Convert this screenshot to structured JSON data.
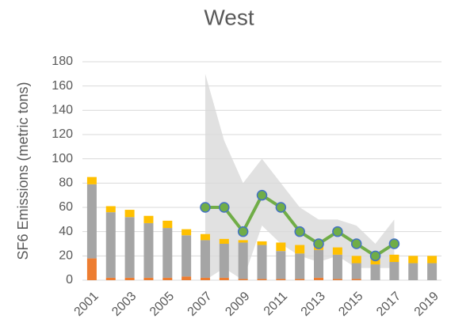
{
  "chart_data": {
    "type": "stacked_bar",
    "title": "West",
    "y_label": "SF6 Emissions (metric tons)",
    "categories": [
      "2001",
      null,
      "2003",
      null,
      "2005",
      null,
      "2007",
      null,
      "2009",
      null,
      "2011",
      null,
      "2013",
      null,
      "2015",
      null,
      "2017",
      null,
      "2019"
    ],
    "series": [
      {
        "color": "#ed7d31",
        "values": [
          18,
          2,
          2,
          2,
          2,
          3,
          2,
          2,
          1,
          1,
          1,
          1,
          2,
          1,
          1,
          0,
          0,
          0,
          0
        ]
      },
      {
        "color": "#a5a5a5",
        "values": [
          61,
          54,
          50,
          45,
          41,
          34,
          31,
          28,
          30,
          28,
          23,
          21,
          23,
          20,
          13,
          13,
          15,
          14,
          14
        ]
      },
      {
        "color": "#ffc000",
        "values": [
          6,
          5,
          6,
          6,
          6,
          5,
          5,
          4,
          2,
          3,
          7,
          7,
          4,
          6,
          6,
          6,
          6,
          6,
          6
        ]
      }
    ],
    "line": {
      "color": "#70ad47",
      "marker_color": "#4472c4",
      "values": [
        null,
        null,
        null,
        null,
        null,
        null,
        60,
        60,
        40,
        70,
        60,
        40,
        30,
        40,
        30,
        20,
        30,
        null,
        null
      ]
    },
    "band": {
      "color": "#d9d9d9",
      "upper": [
        null,
        null,
        null,
        null,
        null,
        null,
        170,
        115,
        80,
        100,
        80,
        60,
        50,
        50,
        45,
        30,
        50,
        null,
        null
      ],
      "lower": [
        null,
        null,
        null,
        null,
        null,
        null,
        0,
        10,
        0,
        45,
        30,
        20,
        15,
        20,
        10,
        10,
        10,
        null,
        null
      ]
    },
    "ylim": [
      0,
      180
    ],
    "yticks": [
      0,
      20,
      40,
      60,
      80,
      100,
      120,
      140,
      160,
      180
    ],
    "grid": true
  }
}
